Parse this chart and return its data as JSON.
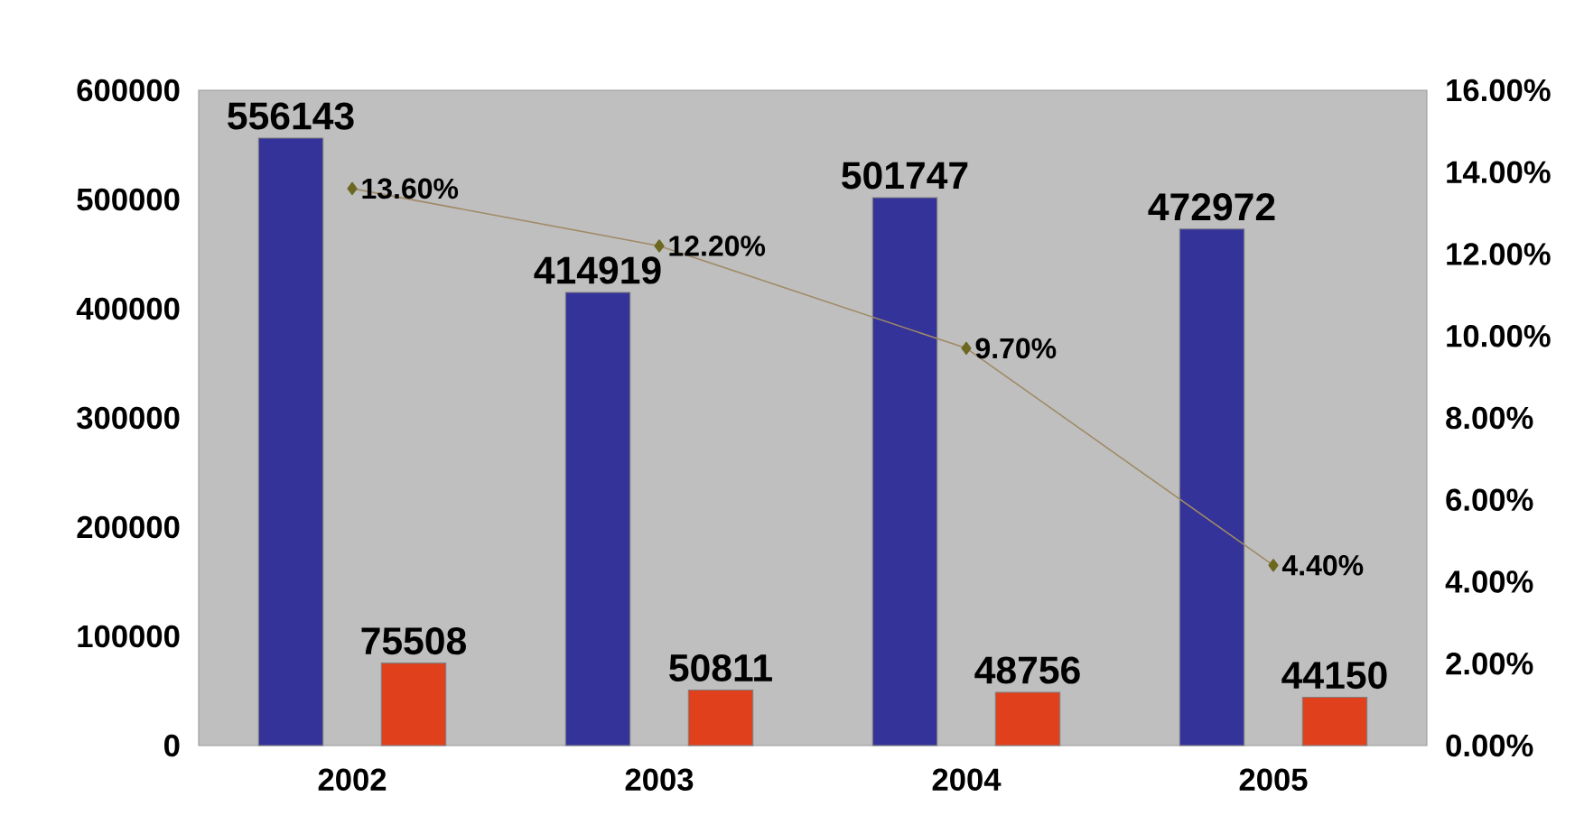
{
  "chart_data": {
    "type": "bar",
    "categories": [
      "2002",
      "2003",
      "2004",
      "2005"
    ],
    "ylim": [
      0,
      600000
    ],
    "yticks": [
      0,
      100000,
      200000,
      300000,
      400000,
      500000,
      600000
    ],
    "y2lim": [
      0,
      16
    ],
    "y2ticks": [
      {
        "value": 0,
        "label": "0.00%"
      },
      {
        "value": 2,
        "label": "2.00%"
      },
      {
        "value": 4,
        "label": "4.00%"
      },
      {
        "value": 6,
        "label": "6.00%"
      },
      {
        "value": 8,
        "label": "8.00%"
      },
      {
        "value": 10,
        "label": "10.00%"
      },
      {
        "value": 12,
        "label": "12.00%"
      },
      {
        "value": 14,
        "label": "14.00%"
      },
      {
        "value": 16,
        "label": "16.00%"
      }
    ],
    "marker": "diamond",
    "series": [
      {
        "color": "#333399",
        "values": [
          556143,
          414919,
          501747,
          472972
        ],
        "value_labels": [
          "556143",
          "414919",
          "501747",
          "472972"
        ]
      },
      {
        "color": "#e0401c",
        "values": [
          75508,
          50811,
          48756,
          44150
        ],
        "value_labels": [
          "75508",
          "50811",
          "48756",
          "44150"
        ]
      },
      {
        "type": "line",
        "axis": "y2",
        "color": "#a08a66",
        "values": [
          13.6,
          12.2,
          9.7,
          4.4
        ],
        "value_labels": [
          "13.60%",
          "12.20%",
          "9.70%",
          "4.40%"
        ]
      }
    ]
  }
}
